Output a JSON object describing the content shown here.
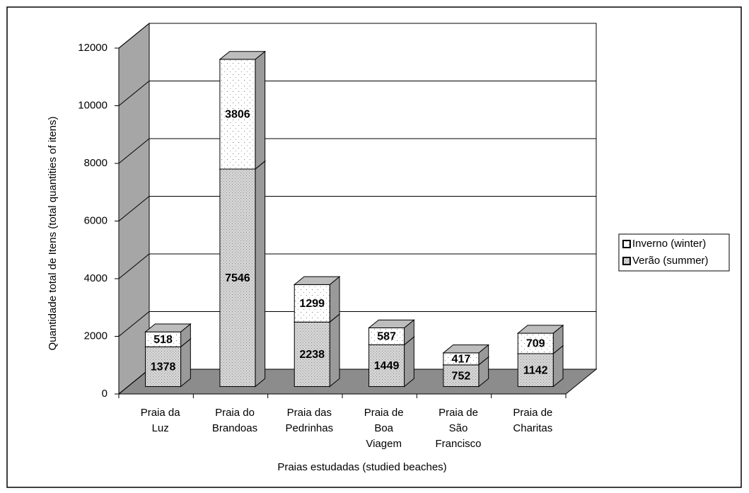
{
  "chart_data": {
    "type": "bar3d_stacked",
    "y_axis_label": "Quantidade total de Itens (total quantities of itens)",
    "x_axis_label": "Praias estudadas (studied beaches)",
    "categories": [
      [
        "Praia da",
        "Luz"
      ],
      [
        "Praia do",
        "Brandoas"
      ],
      [
        "Praia das",
        "Pedrinhas"
      ],
      [
        "Praia de",
        "Boa",
        "Viagem"
      ],
      [
        "Praia de",
        "São",
        "Francisco"
      ],
      [
        "Praia de",
        "Charitas"
      ]
    ],
    "series": [
      {
        "name": "Verão (summer)",
        "color": "#d4d4d4",
        "values": [
          1378,
          7546,
          2238,
          1449,
          752,
          1142
        ]
      },
      {
        "name": "Inverno (winter)",
        "color": "#ffffff",
        "values": [
          518,
          3806,
          1299,
          587,
          417,
          709
        ]
      }
    ],
    "ylim": [
      0,
      12000
    ],
    "yticks": [
      0,
      2000,
      4000,
      6000,
      8000,
      10000,
      12000
    ],
    "grid": true
  }
}
